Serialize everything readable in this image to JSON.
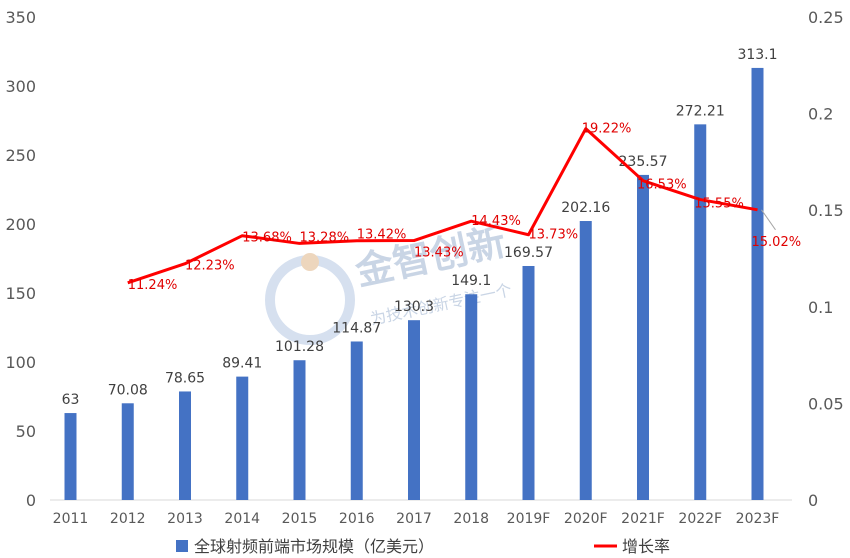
{
  "chart_data": {
    "type": "bar+line",
    "categories": [
      "2011",
      "2012",
      "2013",
      "2014",
      "2015",
      "2016",
      "2017",
      "2018",
      "2019F",
      "2020F",
      "2021F",
      "2022F",
      "2023F"
    ],
    "series": [
      {
        "name": "全球射频前端市场规模（亿美元）",
        "type": "bar",
        "axis": "left",
        "color": "#4472c4",
        "values": [
          63,
          70.08,
          78.65,
          89.41,
          101.28,
          114.87,
          130.3,
          149.1,
          169.57,
          202.16,
          235.57,
          272.21,
          313.1
        ],
        "labels": [
          "63",
          "70.08",
          "78.65",
          "89.41",
          "101.28",
          "114.87",
          "130.3",
          "149.1",
          "169.57",
          "202.16",
          "235.57",
          "272.21",
          "313.1"
        ]
      },
      {
        "name": "增长率",
        "type": "line",
        "axis": "right",
        "color": "#ff0000",
        "values": [
          null,
          0.1124,
          0.1223,
          0.1368,
          0.1328,
          0.1342,
          0.1343,
          0.1443,
          0.1373,
          0.1922,
          0.1653,
          0.1555,
          0.1502
        ],
        "labels": [
          "",
          "11.24%",
          "12.23%",
          "13.68%",
          "13.28%",
          "13.42%",
          "13.43%",
          "14.43%",
          "13.73%",
          "19.22%",
          "16.53%",
          "15.55%",
          "15.02%"
        ]
      }
    ],
    "y_left": {
      "min": 0,
      "max": 350,
      "ticks": [
        "0",
        "50",
        "100",
        "150",
        "200",
        "250",
        "300",
        "350"
      ]
    },
    "y_right": {
      "min": 0,
      "max": 0.25,
      "ticks": [
        "0",
        "0.05",
        "0.1",
        "0.15",
        "0.2",
        "0.25"
      ]
    },
    "grid": false,
    "legend": "bottom"
  },
  "watermark": {
    "title": "金智创新",
    "slogan": "为技术创新专注一个"
  }
}
